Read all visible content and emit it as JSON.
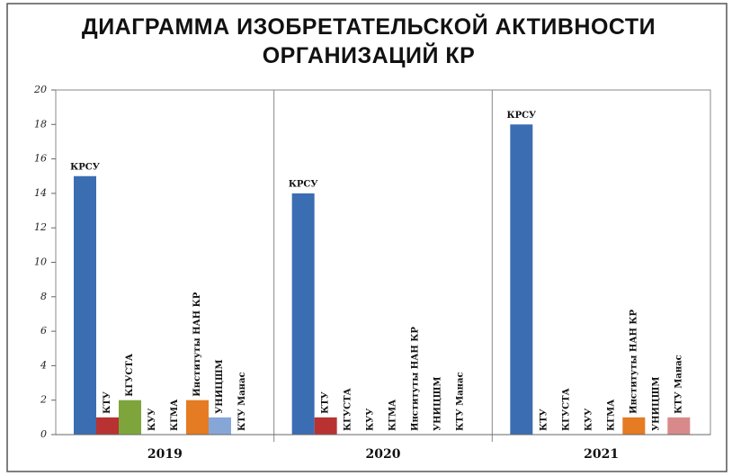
{
  "chart_data": {
    "type": "bar",
    "title": "ДИАГРАММА ИЗОБРЕТАТЕЛЬСКОЙ АКТИВНОСТИ ОРГАНИЗАЦИЙ КР",
    "categories": [
      "2019",
      "2020",
      "2021"
    ],
    "series": [
      {
        "name": "КРСУ",
        "color": "#3b6db3",
        "values": [
          15,
          14,
          18
        ]
      },
      {
        "name": "КТУ",
        "color": "#b83232",
        "values": [
          1,
          1,
          0
        ]
      },
      {
        "name": "КГУСТА",
        "color": "#7ea53c",
        "values": [
          2,
          0,
          0
        ]
      },
      {
        "name": "КУУ",
        "color": "#6d5a9c",
        "values": [
          0,
          0,
          0
        ]
      },
      {
        "name": "КГМА",
        "color": "#3a9ab5",
        "values": [
          0,
          0,
          0
        ]
      },
      {
        "name": "Институты НАН КР",
        "color": "#e57b22",
        "values": [
          2,
          0,
          1
        ]
      },
      {
        "name": "УНИЦШМ",
        "color": "#87a6d8",
        "values": [
          1,
          0,
          0
        ]
      },
      {
        "name": "КТУ Манас",
        "color": "#d88a8a",
        "values": [
          0,
          0,
          1
        ]
      }
    ],
    "ylim": [
      0,
      20
    ],
    "yticks": [
      0,
      2,
      4,
      6,
      8,
      10,
      12,
      14,
      16,
      18,
      20
    ],
    "grid": false
  }
}
